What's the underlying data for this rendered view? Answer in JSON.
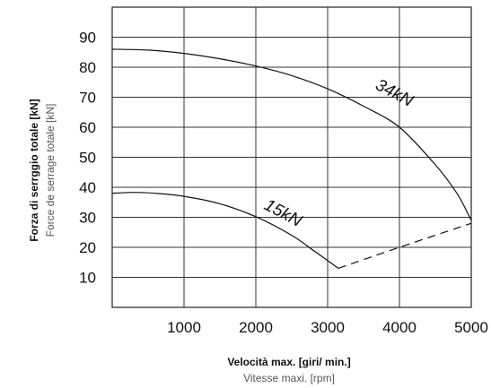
{
  "chart_data": {
    "type": "line",
    "xlabel": "Velocità max. [giri/ min.]",
    "xlabel_secondary": "Vitesse maxi. [rpm]",
    "ylabel": "Forza di serrggio totale [kN]",
    "ylabel_secondary": "Force de serrage totale [kN]",
    "xlim": [
      0,
      5000
    ],
    "ylim": [
      0,
      100
    ],
    "x_ticks": [
      1000,
      2000,
      3000,
      4000,
      5000
    ],
    "y_ticks": [
      10,
      20,
      30,
      40,
      50,
      60,
      70,
      80,
      90
    ],
    "grid": true,
    "legend": "none",
    "series": [
      {
        "name": "34kN",
        "style": "solid",
        "x": [
          0,
          500,
          1000,
          1500,
          2000,
          2500,
          3000,
          3500,
          4000,
          4500,
          4800,
          5000
        ],
        "y": [
          86,
          85.7,
          84.6,
          82.8,
          80.4,
          77.2,
          72.8,
          67.0,
          60.0,
          47.5,
          38.0,
          29.0
        ]
      },
      {
        "name": "15kN",
        "style": "solid",
        "x": [
          0,
          300,
          600,
          1000,
          1500,
          2000,
          2500,
          2800,
          3150
        ],
        "y": [
          38.0,
          38.3,
          38.0,
          37.0,
          34.5,
          30.2,
          24.0,
          19.0,
          13.0
        ]
      },
      {
        "name": "",
        "style": "dashed",
        "x": [
          3150,
          4000,
          5000
        ],
        "y": [
          13.0,
          20.0,
          28.0
        ]
      }
    ],
    "annotations": [
      {
        "text": "34kN",
        "x": 3650,
        "y": 73
      },
      {
        "text": "15kN",
        "x": 2100,
        "y": 33
      }
    ]
  }
}
